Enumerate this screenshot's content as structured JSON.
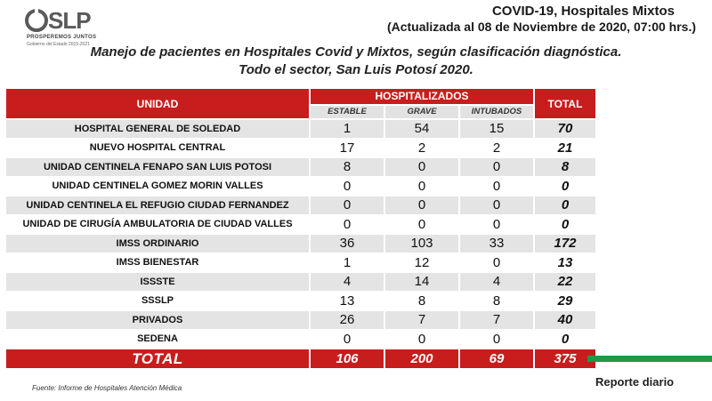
{
  "header": {
    "logo_text": "SLP",
    "logo_tagline": "PROSPEREMOS JUNTOS",
    "logo_subline": "Gobierno del Estado 2015-2021",
    "title": "COVID-19, Hospitales Mixtos",
    "updated": "(Actualizada al 08 de Noviembre de 2020, 07:00 hrs.)"
  },
  "subtitle": {
    "line1": "Manejo de pacientes en Hospitales Covid y Mixtos, según clasificación diagnóstica.",
    "line2": "Todo el sector, San Luis Potosí 2020."
  },
  "table": {
    "col_unit": "UNIDAD",
    "col_group": "HOSPITALIZADOS",
    "col_stable": "ESTABLE",
    "col_grave": "GRAVE",
    "col_intubated": "INTUBADOS",
    "col_total": "TOTAL",
    "rows": [
      {
        "unit": "HOSPITAL GENERAL DE SOLEDAD",
        "estable": "1",
        "grave": "54",
        "intubados": "15",
        "total": "70"
      },
      {
        "unit": "NUEVO HOSPITAL CENTRAL",
        "estable": "17",
        "grave": "2",
        "intubados": "2",
        "total": "21"
      },
      {
        "unit": "UNIDAD CENTINELA FENAPO SAN LUIS POTOSI",
        "estable": "8",
        "grave": "0",
        "intubados": "0",
        "total": "8"
      },
      {
        "unit": "UNIDAD CENTINELA GOMEZ MORIN VALLES",
        "estable": "0",
        "grave": "0",
        "intubados": "0",
        "total": "0"
      },
      {
        "unit": "UNIDAD CENTINELA EL REFUGIO CIUDAD FERNANDEZ",
        "estable": "0",
        "grave": "0",
        "intubados": "0",
        "total": "0"
      },
      {
        "unit": "UNIDAD DE CIRUGÍA AMBULATORIA DE CIUDAD VALLES",
        "estable": "0",
        "grave": "0",
        "intubados": "0",
        "total": "0"
      },
      {
        "unit": "IMSS ORDINARIO",
        "estable": "36",
        "grave": "103",
        "intubados": "33",
        "total": "172"
      },
      {
        "unit": "IMSS BIENESTAR",
        "estable": "1",
        "grave": "12",
        "intubados": "0",
        "total": "13"
      },
      {
        "unit": "ISSSTE",
        "estable": "4",
        "grave": "14",
        "intubados": "4",
        "total": "22"
      },
      {
        "unit": "SSSLP",
        "estable": "13",
        "grave": "8",
        "intubados": "8",
        "total": "29"
      },
      {
        "unit": "PRIVADOS",
        "estable": "26",
        "grave": "7",
        "intubados": "7",
        "total": "40"
      },
      {
        "unit": "SEDENA",
        "estable": "0",
        "grave": "0",
        "intubados": "0",
        "total": "0"
      }
    ],
    "totals": {
      "label": "TOTAL",
      "estable": "106",
      "grave": "200",
      "intubados": "69",
      "total": "375"
    }
  },
  "footer": {
    "source": "Fuente: Informe de Hospitales Atención Médica",
    "daily_report": "Reporte diario"
  },
  "colors": {
    "header_red": "#c81d1d",
    "row_shade": "#e4e4e4",
    "accent_green": "#1e9a46"
  }
}
